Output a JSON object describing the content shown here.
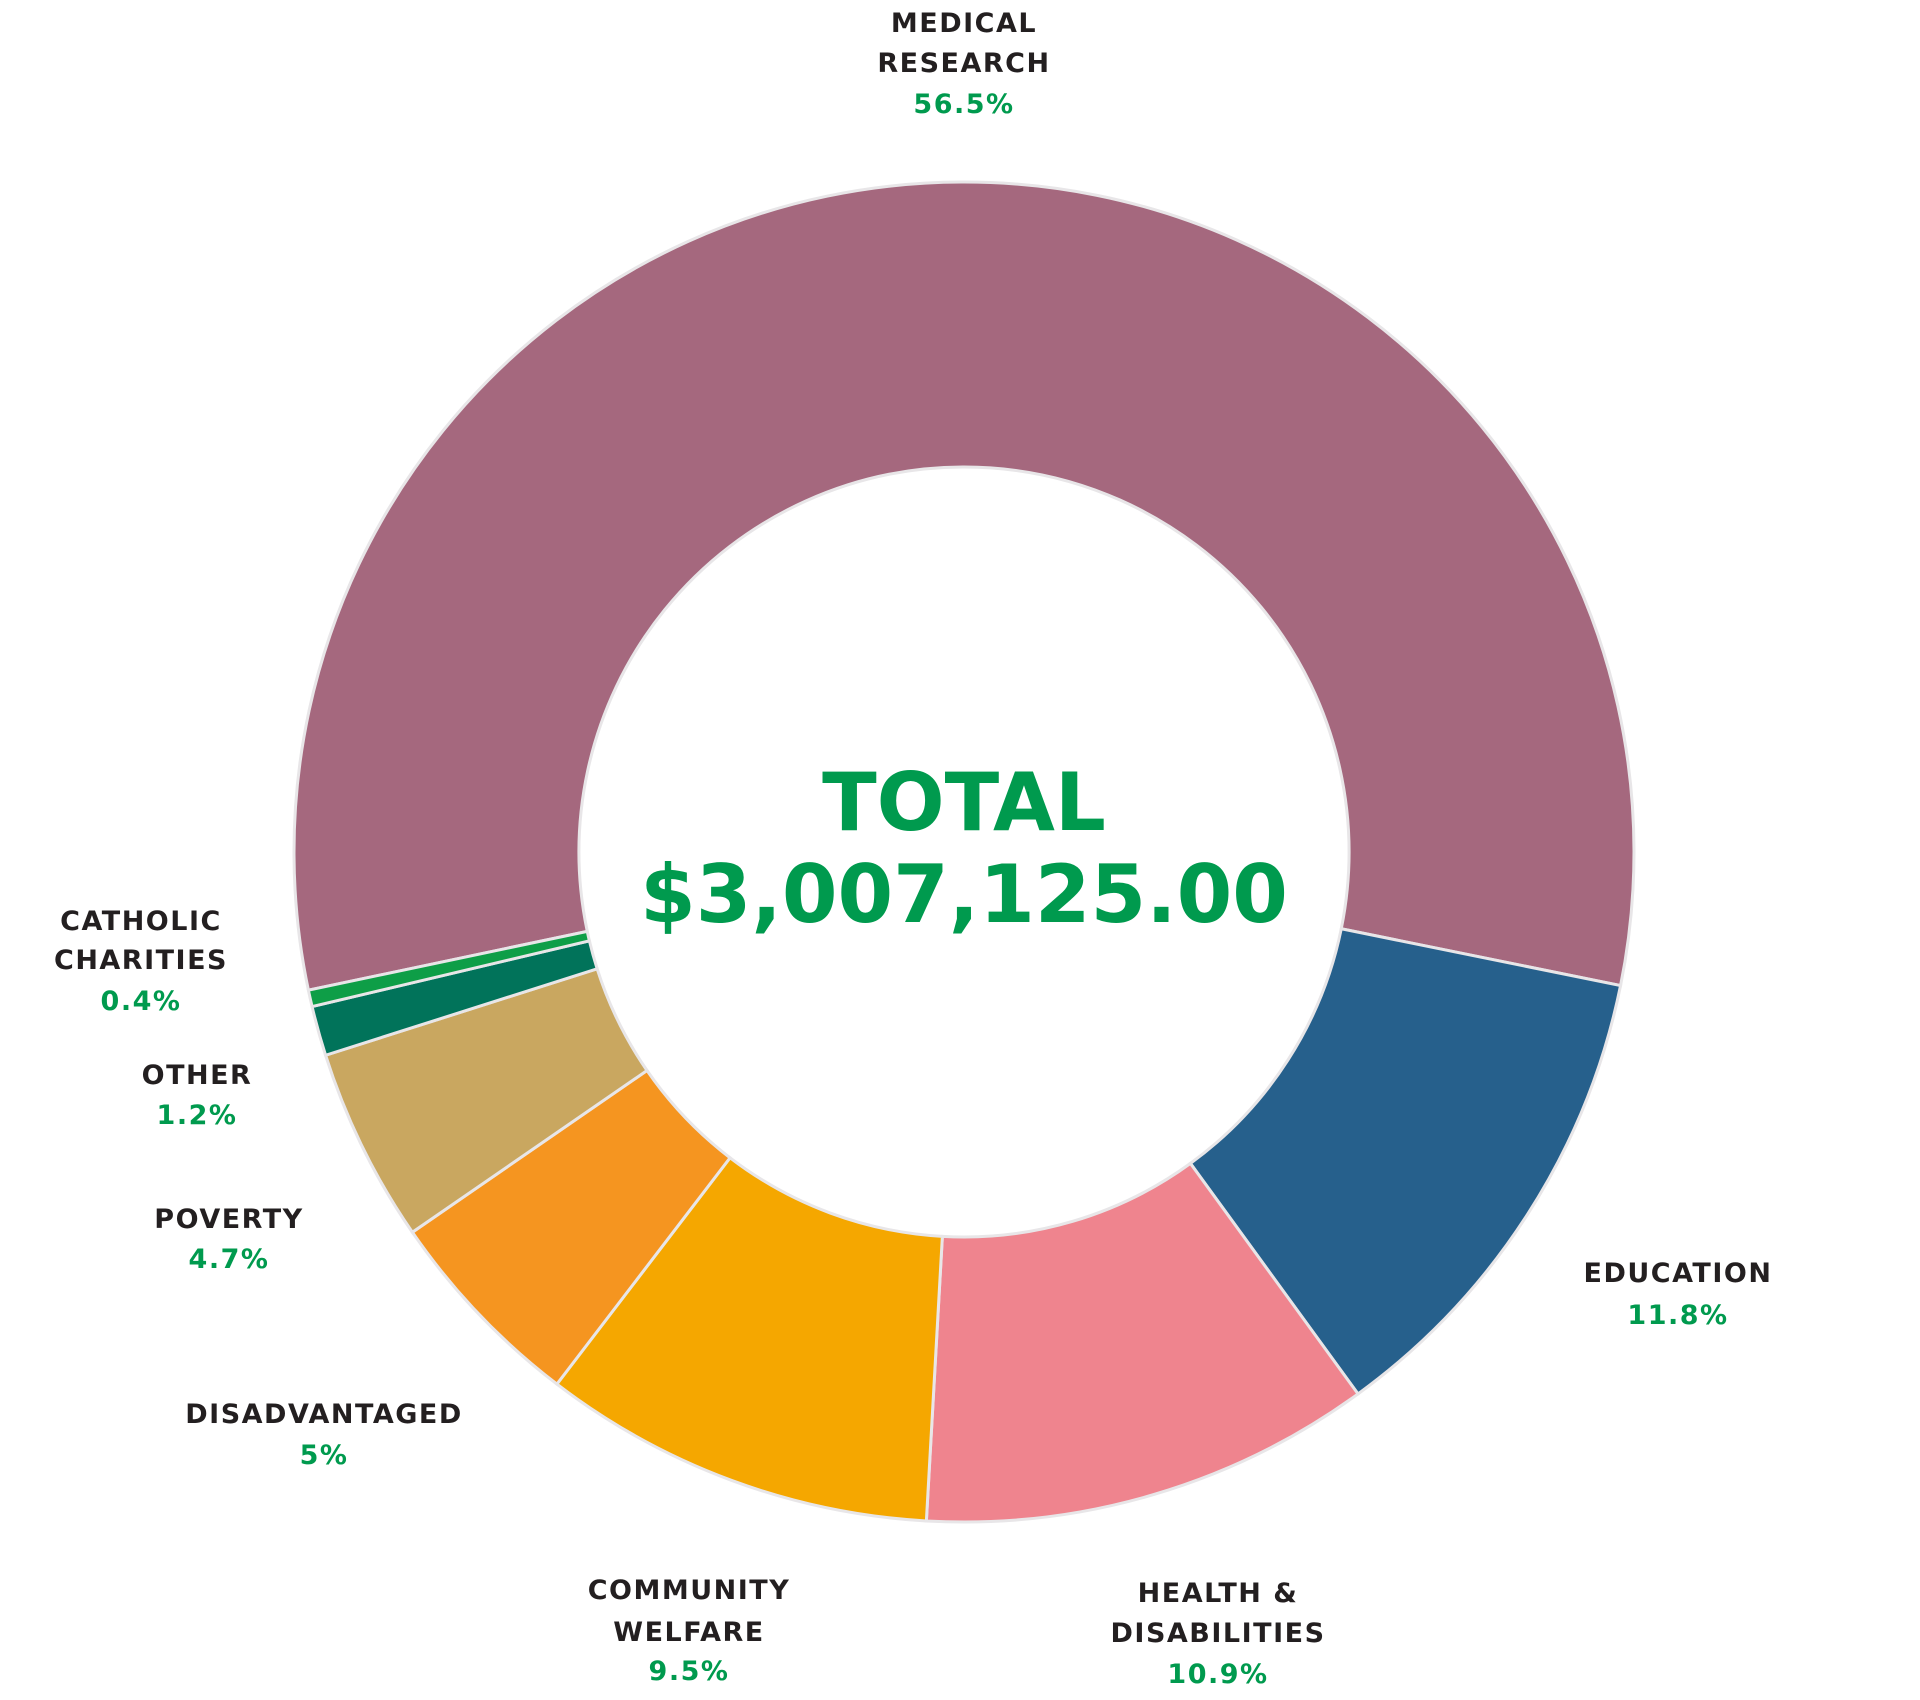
{
  "chart_data": {
    "type": "pie",
    "donut": true,
    "center_title": "TOTAL",
    "center_value": "$3,007,125.00",
    "slices": [
      {
        "label": [
          "MEDICAL",
          "RESEARCH"
        ],
        "value": 56.5,
        "pct_label": "56.5%",
        "color": "#a5687e"
      },
      {
        "label": [
          "EDUCATION"
        ],
        "value": 11.8,
        "pct_label": "11.8%",
        "color": "#26608c"
      },
      {
        "label": [
          "HEALTH &",
          "DISABILITIES"
        ],
        "value": 10.9,
        "pct_label": "10.9%",
        "color": "#ef848e"
      },
      {
        "label": [
          "COMMUNITY",
          "WELFARE"
        ],
        "value": 9.5,
        "pct_label": "9.5%",
        "color": "#f5a700"
      },
      {
        "label": [
          "DISADVANTAGED"
        ],
        "value": 5,
        "pct_label": "5%",
        "color": "#f59520"
      },
      {
        "label": [
          "POVERTY"
        ],
        "value": 4.7,
        "pct_label": "4.7%",
        "color": "#c9a760"
      },
      {
        "label": [
          "OTHER"
        ],
        "value": 1.2,
        "pct_label": "1.2%",
        "color": "#01735a"
      },
      {
        "label": [
          "CATHOLIC",
          "CHARITIES"
        ],
        "value": 0.4,
        "pct_label": "0.4%",
        "color": "#0e9e47"
      }
    ],
    "text_color": "#231f20",
    "accent_color": "#009a4e"
  }
}
